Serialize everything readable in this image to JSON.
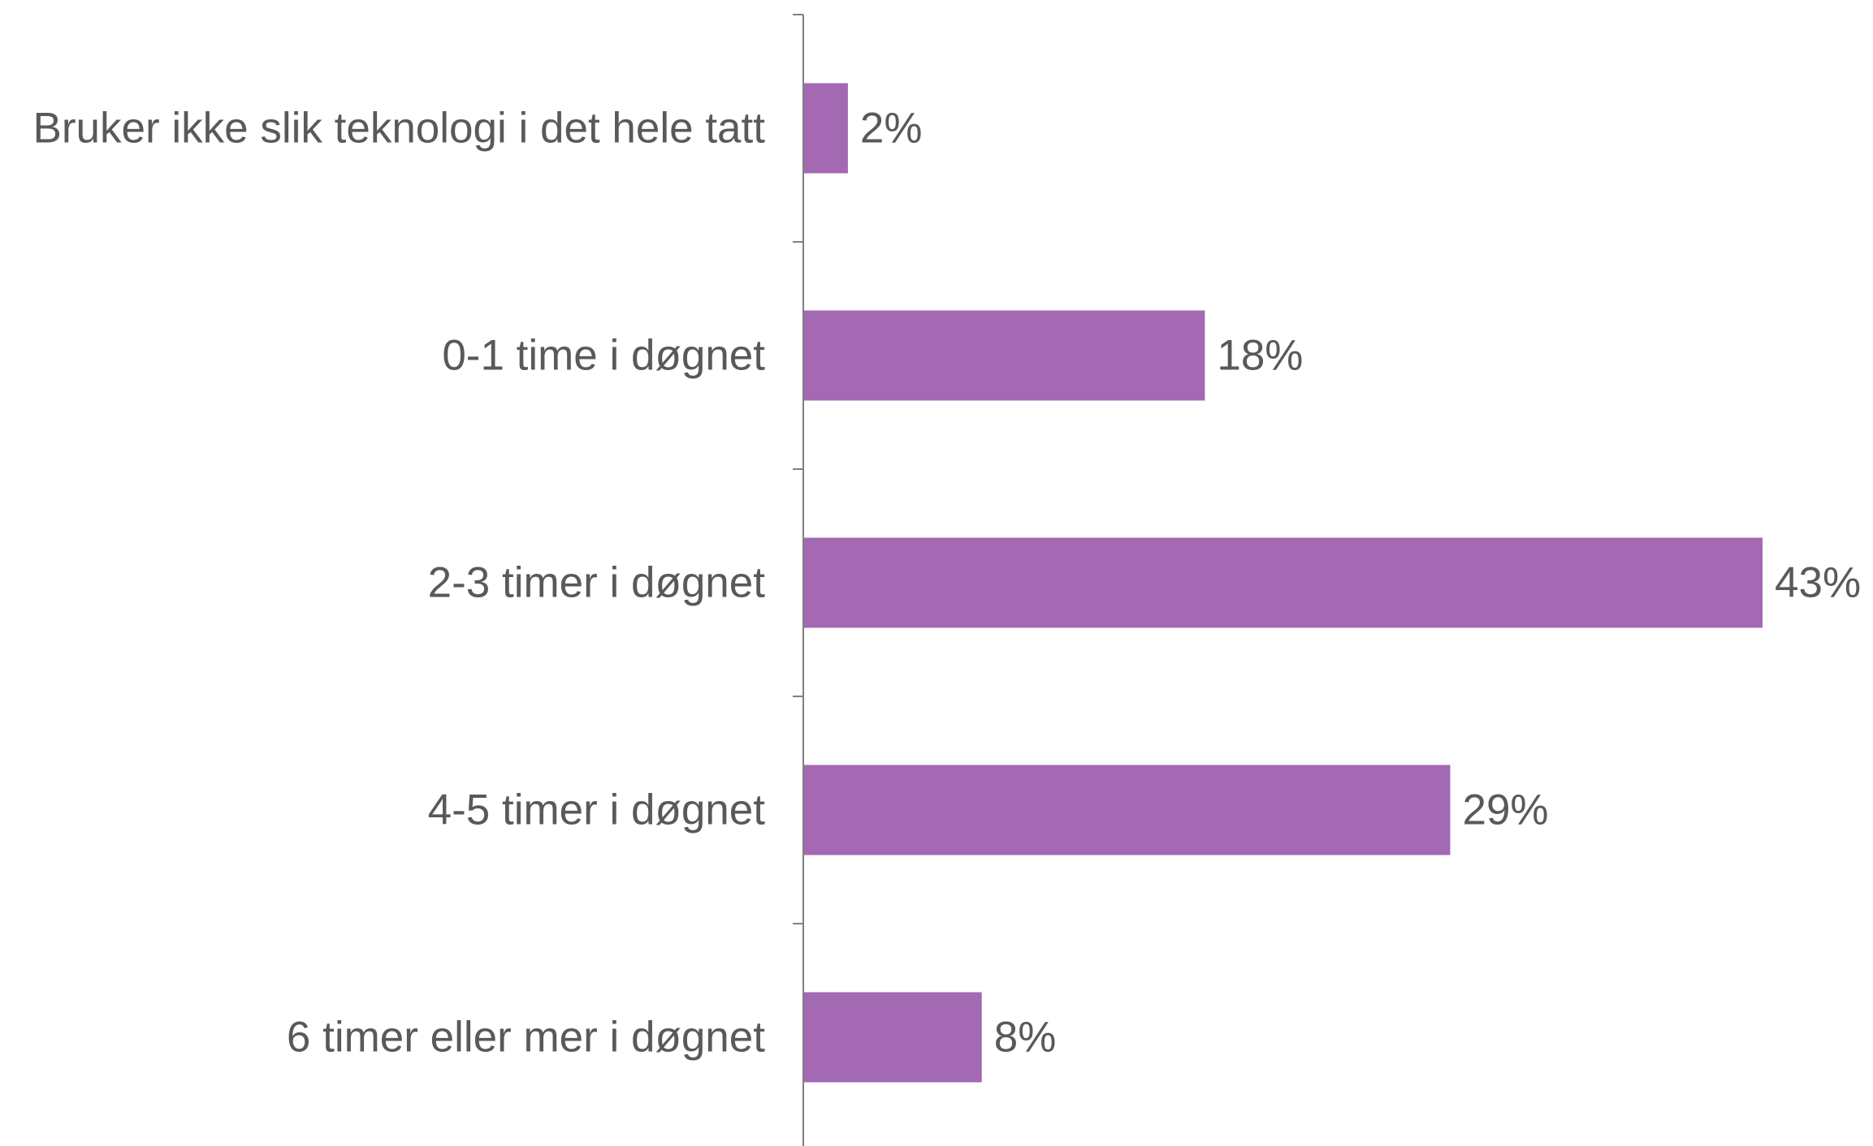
{
  "chart_data": {
    "type": "bar",
    "orientation": "horizontal",
    "categories": [
      "Bruker ikke slik teknologi i det hele tatt",
      "0-1 time i døgnet",
      "2-3 timer i døgnet",
      "4-5 timer i døgnet",
      "6 timer eller mer i døgnet"
    ],
    "values": [
      2,
      18,
      43,
      29,
      8
    ],
    "data_labels": [
      "2%",
      "18%",
      "43%",
      "29%",
      "8%"
    ],
    "unit": "%",
    "xlim": [
      0,
      43
    ],
    "grid": false,
    "legend": "none",
    "bar_color": "#A369B3",
    "axis_color": "#808080",
    "text_color": "#595959"
  }
}
